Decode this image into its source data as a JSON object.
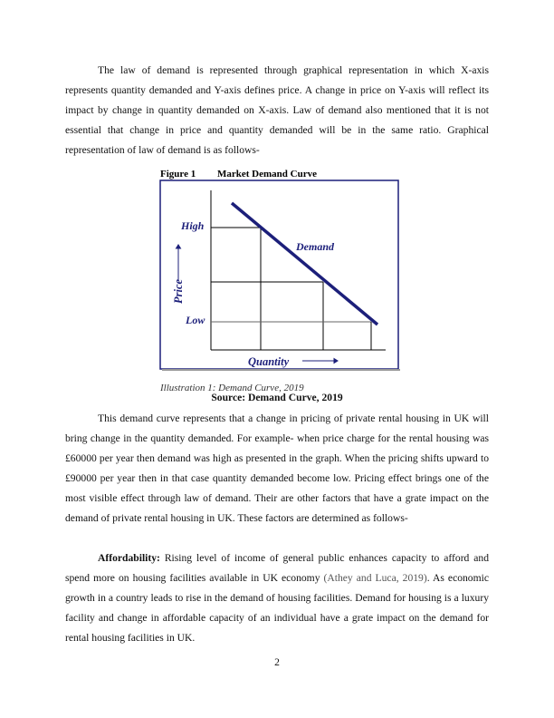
{
  "paragraph1": "The law of demand is represented through graphical representation in which X-axis represents quantity demanded and Y-axis defines price. A change in price on Y-axis will reflect its impact by change in quantity demanded on X-axis. Law of demand also mentioned that it is not essential that change in price and quantity demanded will be in the same ratio. Graphical representation of law of demand is as follows-",
  "figure": {
    "label": "Figure 1",
    "title": "Market Demand Curve",
    "high": "High",
    "low": "Low",
    "price": "Price",
    "quantity": "Quantity",
    "demand": "Demand",
    "caption": "Illustration 1: Demand Curve, 2019",
    "line_color": "#1c1f7a"
  },
  "source": "Source: Demand Curve, 2019",
  "paragraph2": "This demand curve represents that a change in pricing of private rental housing in UK will bring change in the quantity demanded. For example- when price charge for the rental housing was £60000 per year then demand was high as presented in the graph. When the pricing shifts upward to £90000 per year then in that case quantity demanded become low. Pricing effect brings one of the most visible effect through law of demand. Their are other factors that have a grate impact on the demand of private rental housing in UK. These factors are determined as follows-",
  "paragraph3": {
    "heading": "Affordability:",
    "text_before": " Rising level of income of general public enhances capacity to afford and spend more on housing facilities available in UK economy ",
    "citation": "(Athey and Luca, 2019)",
    "text_after": ". As economic growth in a country leads to rise in the demand of housing facilities. Demand for housing is a luxury facility and change in affordable capacity of an individual have a grate impact on the demand for rental housing facilities in UK."
  },
  "page_number": "2"
}
